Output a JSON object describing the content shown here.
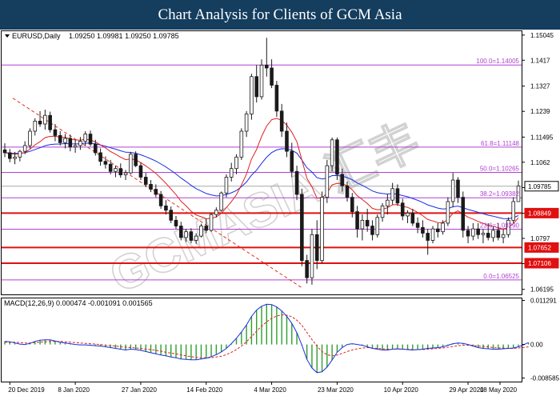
{
  "banner": {
    "title": "Chart Analysis for Clients of GCM Asia"
  },
  "colors": {
    "banner_bg": "#143d5e",
    "fib_line": "#b040d0",
    "sr_line": "#e01010",
    "sr_label_bg": "#e01010",
    "ma_fast": "#e02020",
    "ma_slow": "#1a2ee0",
    "candle": "#1a1a1a",
    "macd_hist": "#2e9e2e",
    "macd_signal": "#e02020",
    "macd_main": "#1a2ee0",
    "trendline": "#e03020"
  },
  "watermark": "GCMASIA 汇丰",
  "chart_data": [
    {
      "type": "candlestick",
      "title": "EURUSD,Daily",
      "ohlc_header": "1.09250 1.09981 1.09250 1.09785",
      "x_tick_labels": [
        "20 Dec 2019",
        "8 Jan 2020",
        "27 Jan 2020",
        "14 Feb 2020",
        "4 Mar 2020",
        "23 Mar 2020",
        "10 Apr 2020",
        "29 Apr 2020",
        "18 May 2020"
      ],
      "y_tick_labels": [
        1.15045,
        1.1417,
        1.1327,
        1.1239,
        1.11495,
        1.1062,
        1.0974,
        1.08845,
        1.0797,
        1.0709,
        1.06195
      ],
      "ylim": [
        1.0602,
        1.1518
      ],
      "current_price": {
        "label": "1.09785",
        "value": 1.09785
      },
      "fib_levels": [
        {
          "label": "100.0=1.14005",
          "value": 1.14005
        },
        {
          "label": "61.8=1.11148",
          "value": 1.11148
        },
        {
          "label": "50.0=1.10265",
          "value": 1.10265
        },
        {
          "label": "38.2=1.09382",
          "value": 1.09382
        },
        {
          "label": "23.6=1.08290",
          "value": 1.0829
        },
        {
          "label": "0.0=1.06525",
          "value": 1.06525
        }
      ],
      "sr_levels": [
        {
          "label": "1.08849",
          "value": 1.08849
        },
        {
          "label": "1.07652",
          "value": 1.07652
        },
        {
          "label": "1.07106",
          "value": 1.07106
        }
      ],
      "candles": [
        [
          1.1105,
          1.1128,
          1.108,
          1.1095
        ],
        [
          1.1095,
          1.1108,
          1.1062,
          1.1075
        ],
        [
          1.1075,
          1.1098,
          1.1055,
          1.108
        ],
        [
          1.108,
          1.1105,
          1.1065,
          1.11
        ],
        [
          1.11,
          1.1135,
          1.109,
          1.112
        ],
        [
          1.112,
          1.118,
          1.111,
          1.117
        ],
        [
          1.117,
          1.1215,
          1.1155,
          1.1205
        ],
        [
          1.1205,
          1.124,
          1.1185,
          1.1195
        ],
        [
          1.1195,
          1.1245,
          1.1175,
          1.1225
        ],
        [
          1.1225,
          1.1238,
          1.1165,
          1.1175
        ],
        [
          1.1175,
          1.1195,
          1.1135,
          1.1155
        ],
        [
          1.1155,
          1.117,
          1.112,
          1.113
        ],
        [
          1.113,
          1.116,
          1.111,
          1.1145
        ],
        [
          1.1145,
          1.1158,
          1.11,
          1.1115
        ],
        [
          1.1115,
          1.114,
          1.1095,
          1.112
        ],
        [
          1.112,
          1.115,
          1.1105,
          1.1135
        ],
        [
          1.1135,
          1.117,
          1.112,
          1.116
        ],
        [
          1.116,
          1.1172,
          1.1118,
          1.1125
        ],
        [
          1.1125,
          1.114,
          1.1085,
          1.1095
        ],
        [
          1.1095,
          1.111,
          1.105,
          1.1065
        ],
        [
          1.1065,
          1.1082,
          1.104,
          1.1055
        ],
        [
          1.1055,
          1.107,
          1.102,
          1.103
        ],
        [
          1.103,
          1.105,
          1.101,
          1.104
        ],
        [
          1.104,
          1.1058,
          1.1008,
          1.1018
        ],
        [
          1.1018,
          1.1035,
          1.1,
          1.1025
        ],
        [
          1.1025,
          1.1098,
          1.102,
          1.109
        ],
        [
          1.109,
          1.11,
          1.1045,
          1.105
        ],
        [
          1.105,
          1.106,
          1.1,
          1.101
        ],
        [
          1.101,
          1.1025,
          1.0975,
          1.0985
        ],
        [
          1.0985,
          1.1,
          1.0958,
          1.0968
        ],
        [
          1.0968,
          1.0985,
          1.094,
          1.095
        ],
        [
          1.095,
          1.0962,
          1.09,
          1.091
        ],
        [
          1.091,
          1.093,
          1.088,
          1.0895
        ],
        [
          1.0895,
          1.0908,
          1.085,
          1.086
        ],
        [
          1.086,
          1.0875,
          1.083,
          1.084
        ],
        [
          1.084,
          1.0855,
          1.079,
          1.08
        ],
        [
          1.08,
          1.083,
          1.0785,
          1.082
        ],
        [
          1.082,
          1.0832,
          1.078,
          1.079
        ],
        [
          1.079,
          1.0815,
          1.0778,
          1.0805
        ],
        [
          1.0805,
          1.0848,
          1.08,
          1.084
        ],
        [
          1.084,
          1.0865,
          1.0815,
          1.0825
        ],
        [
          1.0825,
          1.0885,
          1.082,
          1.088
        ],
        [
          1.088,
          1.0905,
          1.087,
          1.0895
        ],
        [
          1.0895,
          1.096,
          1.089,
          1.0955
        ],
        [
          1.0955,
          1.102,
          1.094,
          1.101
        ],
        [
          1.101,
          1.106,
          1.0995,
          1.104
        ],
        [
          1.104,
          1.109,
          1.102,
          1.108
        ],
        [
          1.108,
          1.118,
          1.107,
          1.117
        ],
        [
          1.117,
          1.124,
          1.115,
          1.123
        ],
        [
          1.123,
          1.137,
          1.121,
          1.136
        ],
        [
          1.136,
          1.14,
          1.127,
          1.129
        ],
        [
          1.129,
          1.142,
          1.128,
          1.14
        ],
        [
          1.14,
          1.1495,
          1.136,
          1.139
        ],
        [
          1.139,
          1.142,
          1.132,
          1.133
        ],
        [
          1.133,
          1.1345,
          1.122,
          1.124
        ],
        [
          1.124,
          1.1265,
          1.115,
          1.117
        ],
        [
          1.117,
          1.12,
          1.108,
          1.11
        ],
        [
          1.11,
          1.113,
          1.101,
          1.103
        ],
        [
          1.103,
          1.105,
          1.093,
          1.095
        ],
        [
          1.095,
          1.097,
          1.07,
          1.072
        ],
        [
          1.072,
          1.074,
          1.064,
          1.066
        ],
        [
          1.066,
          1.083,
          1.0636,
          1.081
        ],
        [
          1.081,
          1.086,
          1.069,
          1.072
        ],
        [
          1.072,
          1.096,
          1.071,
          1.094
        ],
        [
          1.094,
          1.107,
          1.092,
          1.105
        ],
        [
          1.105,
          1.1148,
          1.103,
          1.114
        ],
        [
          1.114,
          1.1148,
          1.1,
          1.102
        ],
        [
          1.102,
          1.104,
          1.096,
          1.098
        ],
        [
          1.098,
          1.0995,
          1.0925,
          1.094
        ],
        [
          1.094,
          1.0955,
          1.087,
          1.089
        ],
        [
          1.089,
          1.091,
          1.08,
          1.083
        ],
        [
          1.083,
          1.088,
          1.079,
          1.086
        ],
        [
          1.086,
          1.09,
          1.082,
          1.084
        ],
        [
          1.084,
          1.086,
          1.079,
          1.081
        ],
        [
          1.081,
          1.088,
          1.08,
          1.087
        ],
        [
          1.087,
          1.092,
          1.0855,
          1.091
        ],
        [
          1.091,
          1.095,
          1.088,
          1.093
        ],
        [
          1.093,
          1.099,
          1.0915,
          1.097
        ],
        [
          1.097,
          1.0985,
          1.091,
          1.092
        ],
        [
          1.092,
          1.0935,
          1.086,
          1.0875
        ],
        [
          1.0875,
          1.0895,
          1.085,
          1.0885
        ],
        [
          1.0885,
          1.09,
          1.084,
          1.085
        ],
        [
          1.085,
          1.087,
          1.0815,
          1.0835
        ],
        [
          1.0835,
          1.086,
          1.08,
          1.0815
        ],
        [
          1.0815,
          1.083,
          1.074,
          1.079
        ],
        [
          1.079,
          1.084,
          1.078,
          1.083
        ],
        [
          1.083,
          1.085,
          1.08,
          1.082
        ],
        [
          1.082,
          1.086,
          1.081,
          1.085
        ],
        [
          1.085,
          1.094,
          1.084,
          1.0925
        ],
        [
          1.0925,
          1.1025,
          1.0905,
          1.1
        ],
        [
          1.1,
          1.101,
          1.092,
          1.094
        ],
        [
          1.094,
          1.096,
          1.08,
          1.0825
        ],
        [
          1.0825,
          1.084,
          1.078,
          1.0805
        ],
        [
          1.0805,
          1.085,
          1.079,
          1.083
        ],
        [
          1.083,
          1.085,
          1.0795,
          1.081
        ],
        [
          1.081,
          1.083,
          1.078,
          1.0815
        ],
        [
          1.0815,
          1.085,
          1.079,
          1.08
        ],
        [
          1.08,
          1.084,
          1.0785,
          1.0825
        ],
        [
          1.0825,
          1.085,
          1.079,
          1.08
        ],
        [
          1.08,
          1.083,
          1.078,
          1.081
        ],
        [
          1.081,
          1.087,
          1.08,
          1.086
        ],
        [
          1.086,
          1.094,
          1.085,
          1.0925
        ],
        [
          1.0925,
          1.0998,
          1.0925,
          1.0979
        ]
      ]
    },
    {
      "type": "line",
      "title": "MACD(12,26,9) 0.000474 -0.001091 0.001565",
      "y_tick_labels": [
        0.011291,
        0.0,
        -0.008585
      ],
      "ylim": [
        -0.0095,
        0.0118
      ],
      "series": [
        {
          "role": "macd_main",
          "color": "#1a2ee0",
          "values": [
            0.0008,
            0.0007,
            0.0004,
            0.0001,
            0.0,
            0.0003,
            0.0008,
            0.0011,
            0.0012,
            0.0012,
            0.0009,
            0.0006,
            0.0004,
            0.0002,
            0.0,
            -0.0001,
            -0.0001,
            -0.0002,
            -0.0003,
            -0.0004,
            -0.0006,
            -0.0008,
            -0.001,
            -0.0012,
            -0.0014,
            -0.0012,
            -0.0013,
            -0.0015,
            -0.0018,
            -0.0021,
            -0.0024,
            -0.0027,
            -0.0029,
            -0.0032,
            -0.0034,
            -0.0037,
            -0.0038,
            -0.0039,
            -0.0039,
            -0.0037,
            -0.0035,
            -0.0031,
            -0.0026,
            -0.0019,
            -0.001,
            0.0002,
            0.0016,
            0.0032,
            0.005,
            0.0072,
            0.0088,
            0.0098,
            0.0103,
            0.0102,
            0.0096,
            0.0086,
            0.0072,
            0.0054,
            0.003,
            -0.0002,
            -0.0038,
            -0.006,
            -0.0072,
            -0.007,
            -0.0058,
            -0.004,
            -0.002,
            -0.0008,
            0.0,
            0.0002,
            0.0,
            -0.0002,
            -0.0006,
            -0.001,
            -0.0012,
            -0.0014,
            -0.0014,
            -0.0012,
            -0.0011,
            -0.0012,
            -0.0013,
            -0.0014,
            -0.0013,
            -0.0012,
            -0.001,
            -0.0009,
            -0.0008,
            -0.0006,
            -0.0002,
            0.0002,
            0.0004,
            0.0003,
            0.0,
            -0.0004,
            -0.0008,
            -0.001,
            -0.0011,
            -0.0012,
            -0.0012,
            -0.0011,
            -0.001,
            -0.0009,
            -0.0006,
            -0.0001,
            0.0005
          ]
        },
        {
          "role": "macd_signal",
          "color": "#e02020",
          "values": [
            0.0006,
            0.0006,
            0.0006,
            0.0005,
            0.0004,
            0.0004,
            0.0005,
            0.0006,
            0.0007,
            0.0008,
            0.0008,
            0.0008,
            0.0007,
            0.0006,
            0.0005,
            0.0004,
            0.0003,
            0.0002,
            0.0001,
            0.0,
            -0.0002,
            -0.0003,
            -0.0004,
            -0.0006,
            -0.0007,
            -0.0008,
            -0.0009,
            -0.001,
            -0.0012,
            -0.0013,
            -0.0015,
            -0.0017,
            -0.002,
            -0.0022,
            -0.0024,
            -0.0027,
            -0.0029,
            -0.0031,
            -0.0033,
            -0.0034,
            -0.0034,
            -0.0034,
            -0.0032,
            -0.003,
            -0.0026,
            -0.002,
            -0.0013,
            -0.0004,
            0.0007,
            0.002,
            0.0034,
            0.0047,
            0.0058,
            0.0067,
            0.0073,
            0.0076,
            0.0075,
            0.0071,
            0.0062,
            0.0049,
            0.0031,
            0.0013,
            -0.0004,
            -0.0018,
            -0.0026,
            -0.0029,
            -0.0027,
            -0.0023,
            -0.0018,
            -0.0014,
            -0.0011,
            -0.0009,
            -0.0008,
            -0.0009,
            -0.001,
            -0.0011,
            -0.0012,
            -0.0012,
            -0.0012,
            -0.0012,
            -0.0012,
            -0.0013,
            -0.0013,
            -0.0013,
            -0.0012,
            -0.0011,
            -0.001,
            -0.0009,
            -0.0007,
            -0.0005,
            -0.0003,
            -0.0002,
            -0.0002,
            -0.0002,
            -0.0004,
            -0.0005,
            -0.0006,
            -0.0008,
            -0.0009,
            -0.0009,
            -0.001,
            -0.001,
            -0.0009,
            -0.0008,
            -0.0006
          ]
        }
      ]
    }
  ],
  "annotations": {
    "macd_zero_label": "0.00"
  }
}
